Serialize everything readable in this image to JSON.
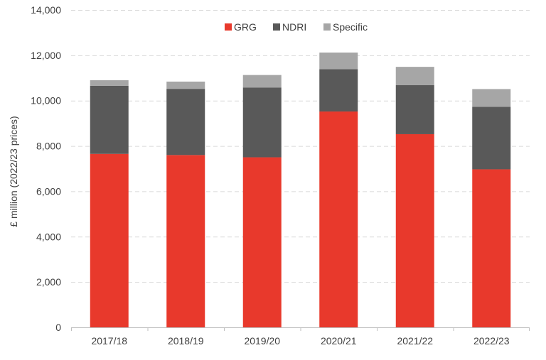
{
  "chart_data": {
    "type": "bar",
    "stacked": true,
    "categories": [
      "2017/18",
      "2018/19",
      "2019/20",
      "2020/21",
      "2021/22",
      "2022/23"
    ],
    "series": [
      {
        "name": "GRG",
        "color": "#e8392c",
        "values": [
          7650,
          7600,
          7500,
          9520,
          8520,
          6970
        ]
      },
      {
        "name": "NDRI",
        "color": "#595959",
        "values": [
          3000,
          2920,
          3080,
          1870,
          2160,
          2760
        ]
      },
      {
        "name": "Specific",
        "color": "#a6a6a6",
        "values": [
          250,
          320,
          550,
          730,
          810,
          780
        ]
      }
    ],
    "ylabel": "£ million (2022/23 prices)",
    "ylim": [
      0,
      14000
    ],
    "yticks": [
      0,
      2000,
      4000,
      6000,
      8000,
      10000,
      12000,
      14000
    ],
    "ytick_labels": [
      "0",
      "2,000",
      "4,000",
      "6,000",
      "8,000",
      "10,000",
      "12,000",
      "14,000"
    ],
    "grid": true,
    "legend_position": "top-center"
  }
}
